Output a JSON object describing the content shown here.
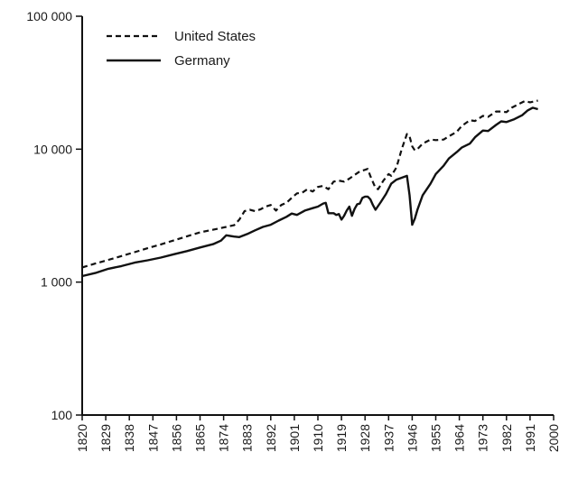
{
  "chart_data": {
    "type": "line",
    "title": "",
    "xlabel": "",
    "ylabel": "",
    "yscale": "log",
    "xlim": [
      1820,
      2000
    ],
    "ylim": [
      100,
      100000
    ],
    "x_ticks": [
      1820,
      1829,
      1838,
      1847,
      1856,
      1865,
      1874,
      1883,
      1892,
      1901,
      1910,
      1919,
      1928,
      1937,
      1946,
      1955,
      1964,
      1973,
      1982,
      1991,
      2000
    ],
    "x_tick_labels": [
      "1820",
      "1829",
      "1838",
      "1847",
      "1856",
      "1865",
      "1874",
      "1883",
      "1892",
      "1901",
      "1910",
      "1919",
      "1928",
      "1937",
      "1946",
      "1955",
      "1964",
      "1973",
      "1982",
      "1991",
      "2000"
    ],
    "y_ticks": [
      100,
      1000,
      10000,
      100000
    ],
    "y_tick_labels": [
      "100",
      "1 000",
      "10 000",
      "100 000"
    ],
    "legend_position": "top-left",
    "grid": false,
    "series": [
      {
        "name": "United States",
        "style": "dashed",
        "color": "#111111",
        "points": [
          [
            1820,
            1290
          ],
          [
            1825,
            1380
          ],
          [
            1830,
            1470
          ],
          [
            1835,
            1570
          ],
          [
            1840,
            1680
          ],
          [
            1845,
            1800
          ],
          [
            1850,
            1920
          ],
          [
            1855,
            2060
          ],
          [
            1860,
            2210
          ],
          [
            1865,
            2370
          ],
          [
            1870,
            2480
          ],
          [
            1875,
            2600
          ],
          [
            1878,
            2680
          ],
          [
            1880,
            2950
          ],
          [
            1882,
            3420
          ],
          [
            1884,
            3500
          ],
          [
            1886,
            3420
          ],
          [
            1888,
            3520
          ],
          [
            1890,
            3700
          ],
          [
            1892,
            3800
          ],
          [
            1894,
            3450
          ],
          [
            1896,
            3800
          ],
          [
            1898,
            3950
          ],
          [
            1900,
            4300
          ],
          [
            1902,
            4650
          ],
          [
            1904,
            4700
          ],
          [
            1906,
            5000
          ],
          [
            1908,
            4800
          ],
          [
            1910,
            5200
          ],
          [
            1912,
            5300
          ],
          [
            1914,
            5000
          ],
          [
            1916,
            5700
          ],
          [
            1918,
            5800
          ],
          [
            1920,
            5700
          ],
          [
            1922,
            6000
          ],
          [
            1924,
            6400
          ],
          [
            1926,
            6800
          ],
          [
            1928,
            7000
          ],
          [
            1929,
            7100
          ],
          [
            1930,
            6300
          ],
          [
            1932,
            5100
          ],
          [
            1933,
            5000
          ],
          [
            1935,
            5800
          ],
          [
            1937,
            6500
          ],
          [
            1938,
            6300
          ],
          [
            1940,
            7300
          ],
          [
            1942,
            10000
          ],
          [
            1944,
            13000
          ],
          [
            1945,
            12500
          ],
          [
            1946,
            10500
          ],
          [
            1947,
            9800
          ],
          [
            1948,
            10000
          ],
          [
            1950,
            11000
          ],
          [
            1953,
            11800
          ],
          [
            1955,
            11700
          ],
          [
            1958,
            11800
          ],
          [
            1960,
            12500
          ],
          [
            1963,
            13500
          ],
          [
            1965,
            15000
          ],
          [
            1968,
            16500
          ],
          [
            1970,
            16300
          ],
          [
            1973,
            17800
          ],
          [
            1975,
            17500
          ],
          [
            1978,
            19200
          ],
          [
            1980,
            19200
          ],
          [
            1982,
            19000
          ],
          [
            1984,
            20500
          ],
          [
            1987,
            22000
          ],
          [
            1989,
            23000
          ],
          [
            1991,
            22500
          ],
          [
            1994,
            23200
          ]
        ]
      },
      {
        "name": "Germany",
        "style": "solid",
        "color": "#111111",
        "points": [
          [
            1820,
            1110
          ],
          [
            1825,
            1170
          ],
          [
            1830,
            1260
          ],
          [
            1835,
            1320
          ],
          [
            1840,
            1400
          ],
          [
            1845,
            1460
          ],
          [
            1850,
            1530
          ],
          [
            1855,
            1620
          ],
          [
            1860,
            1710
          ],
          [
            1865,
            1820
          ],
          [
            1870,
            1930
          ],
          [
            1873,
            2050
          ],
          [
            1875,
            2250
          ],
          [
            1878,
            2200
          ],
          [
            1880,
            2180
          ],
          [
            1883,
            2300
          ],
          [
            1886,
            2450
          ],
          [
            1889,
            2600
          ],
          [
            1892,
            2700
          ],
          [
            1895,
            2900
          ],
          [
            1898,
            3100
          ],
          [
            1900,
            3280
          ],
          [
            1902,
            3200
          ],
          [
            1905,
            3450
          ],
          [
            1908,
            3600
          ],
          [
            1910,
            3700
          ],
          [
            1912,
            3900
          ],
          [
            1913,
            3950
          ],
          [
            1914,
            3300
          ],
          [
            1916,
            3300
          ],
          [
            1917,
            3200
          ],
          [
            1918,
            3250
          ],
          [
            1919,
            2950
          ],
          [
            1920,
            3150
          ],
          [
            1921,
            3450
          ],
          [
            1922,
            3700
          ],
          [
            1923,
            3150
          ],
          [
            1924,
            3550
          ],
          [
            1925,
            3850
          ],
          [
            1926,
            3900
          ],
          [
            1927,
            4300
          ],
          [
            1928,
            4400
          ],
          [
            1929,
            4400
          ],
          [
            1930,
            4200
          ],
          [
            1931,
            3800
          ],
          [
            1932,
            3500
          ],
          [
            1934,
            4000
          ],
          [
            1936,
            4600
          ],
          [
            1938,
            5500
          ],
          [
            1940,
            5900
          ],
          [
            1942,
            6100
          ],
          [
            1944,
            6300
          ],
          [
            1945,
            4500
          ],
          [
            1946,
            2700
          ],
          [
            1947,
            3000
          ],
          [
            1948,
            3500
          ],
          [
            1950,
            4500
          ],
          [
            1953,
            5500
          ],
          [
            1955,
            6500
          ],
          [
            1958,
            7500
          ],
          [
            1960,
            8500
          ],
          [
            1963,
            9500
          ],
          [
            1965,
            10300
          ],
          [
            1968,
            11000
          ],
          [
            1970,
            12300
          ],
          [
            1973,
            13800
          ],
          [
            1975,
            13700
          ],
          [
            1978,
            15200
          ],
          [
            1980,
            16200
          ],
          [
            1982,
            16000
          ],
          [
            1985,
            16800
          ],
          [
            1988,
            18000
          ],
          [
            1990,
            19500
          ],
          [
            1992,
            20500
          ],
          [
            1994,
            20000
          ]
        ]
      }
    ]
  }
}
